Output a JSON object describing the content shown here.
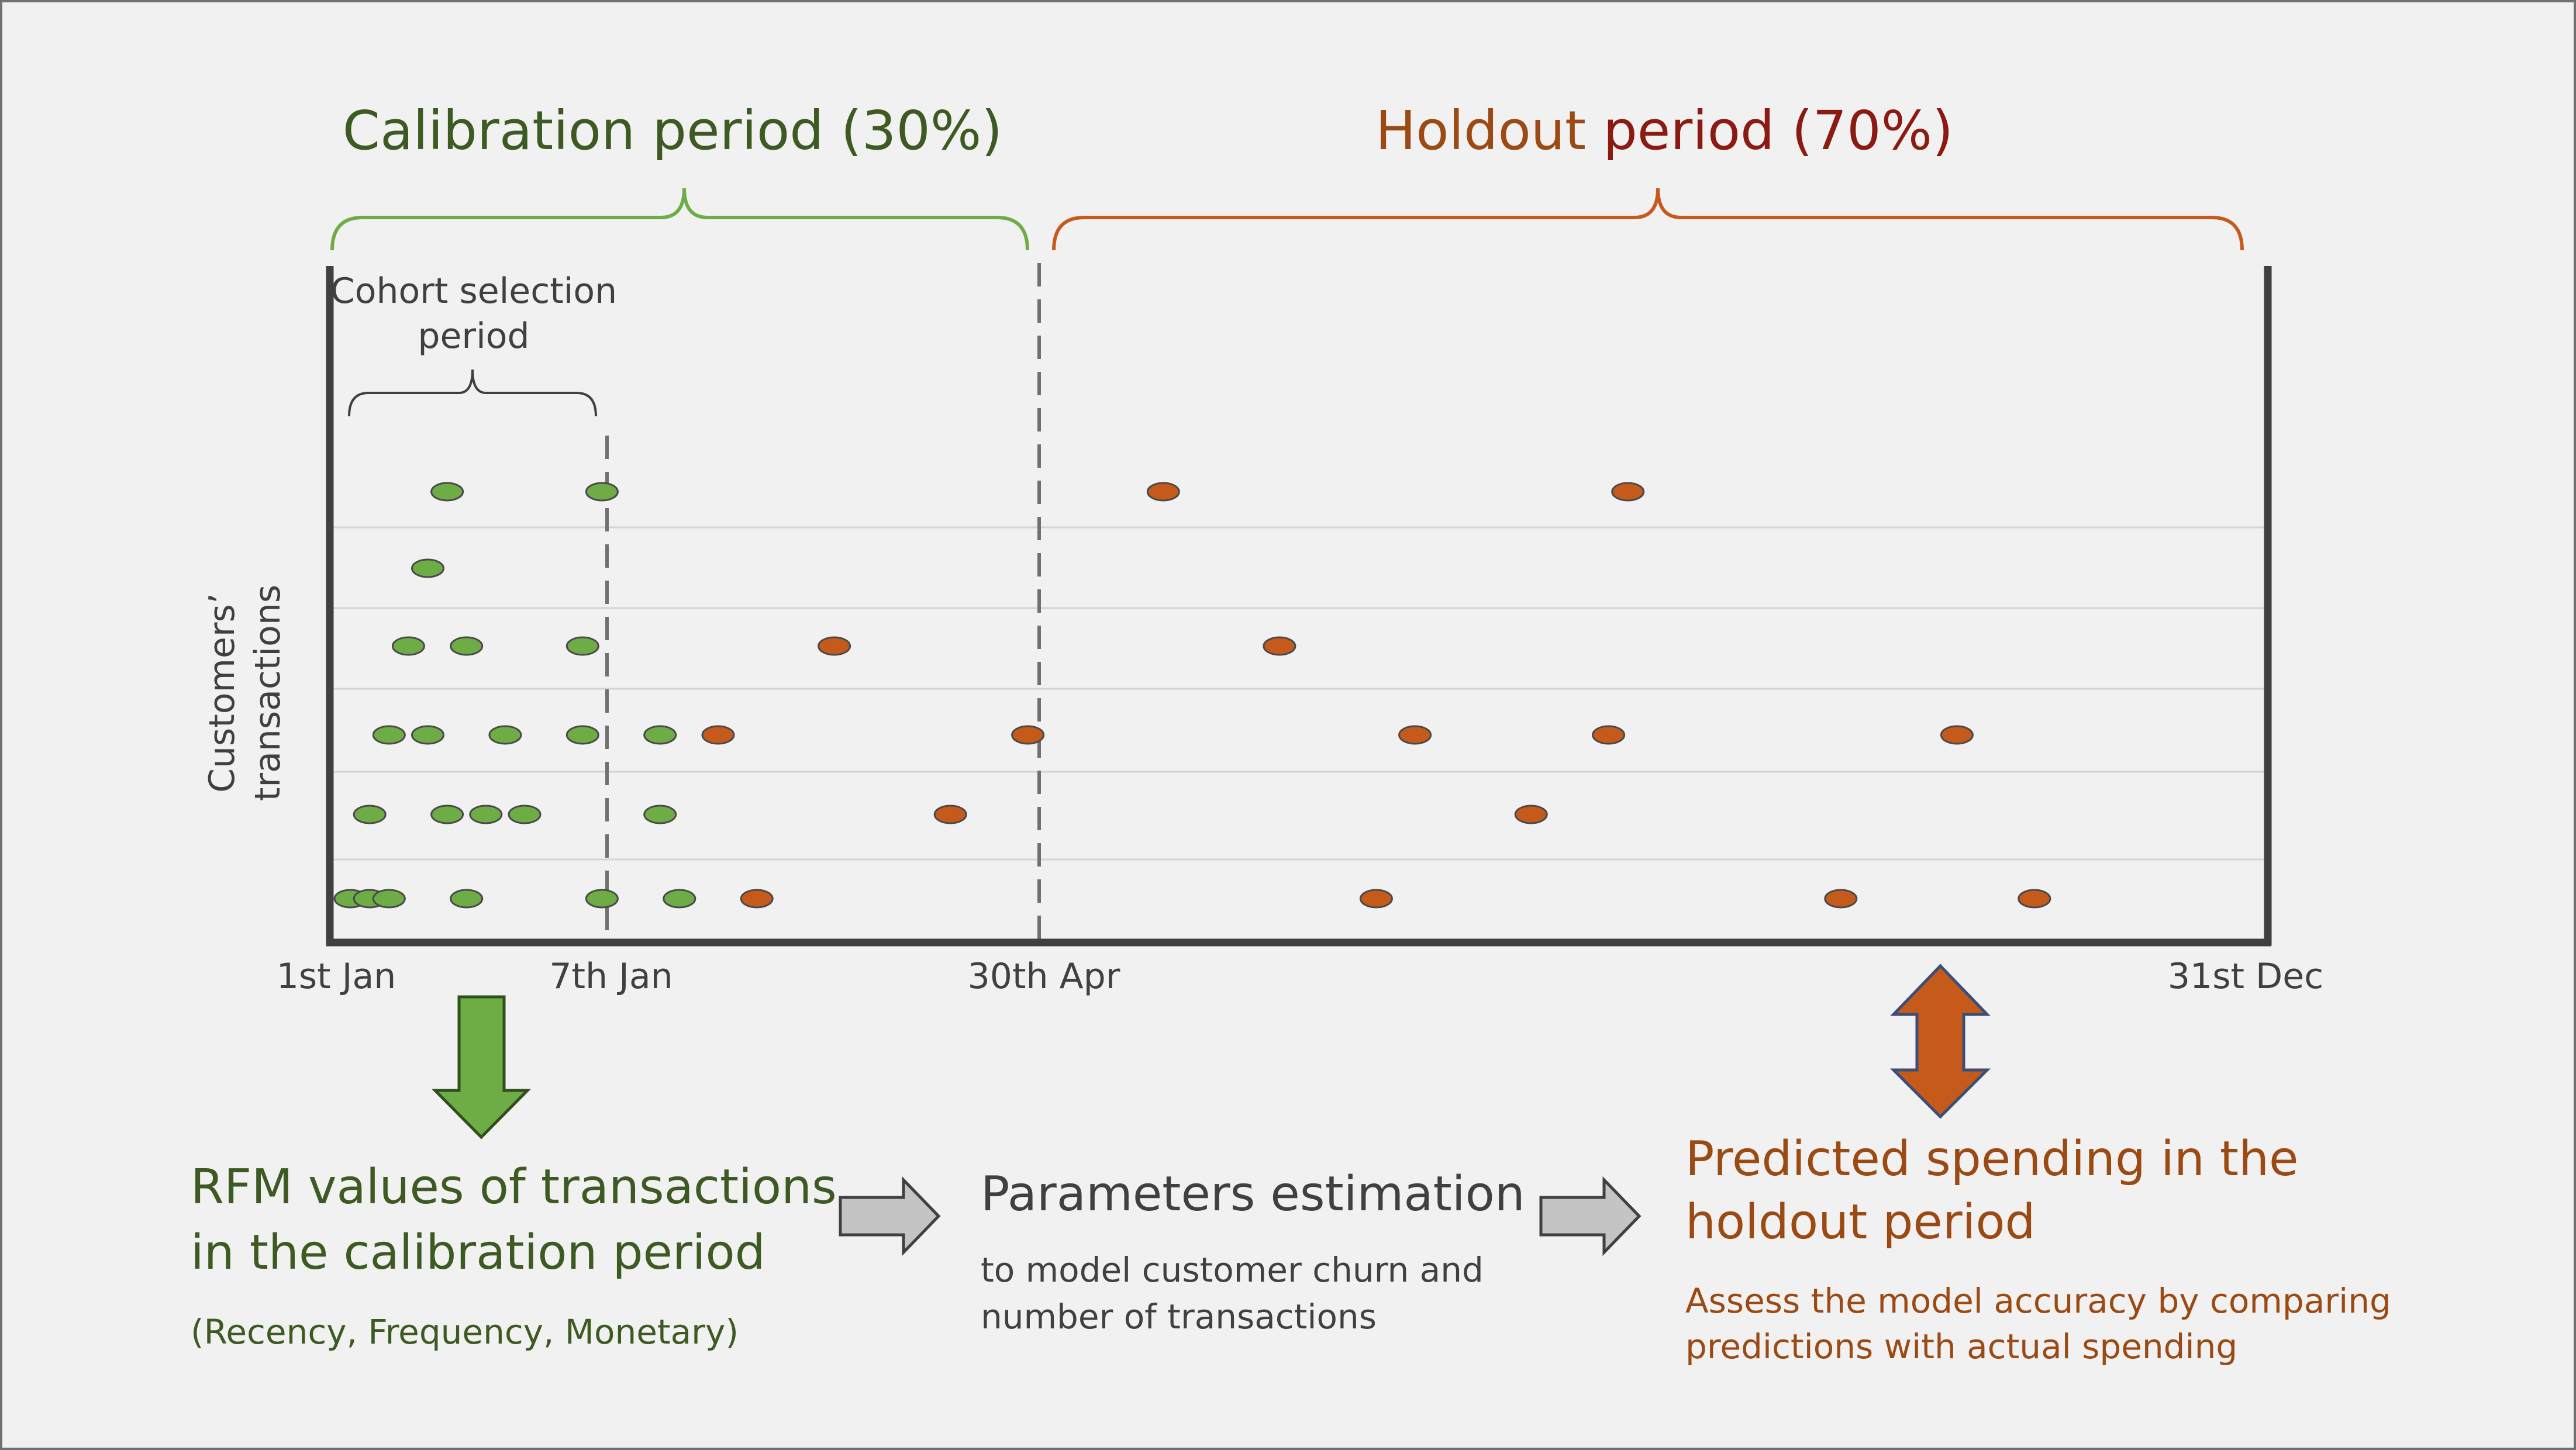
{
  "title_calibration": "Calibration period (30%)",
  "title_holdout_prefix": "Holdout ",
  "title_holdout_suffix": "period (70%)",
  "cohort_label_line1": "Cohort selection",
  "cohort_label_line2": "period",
  "y_axis_line1": "Customers’",
  "y_axis_line2": "transactions",
  "x_ticks": [
    "1st Jan",
    "7th Jan",
    "30th Apr",
    "31st Dec"
  ],
  "rfm_title_line1": "RFM values of transactions",
  "rfm_title_line2": "in the calibration period",
  "rfm_subtitle": "(Recency, Frequency, Monetary)",
  "param_title": "Parameters estimation",
  "param_sub_line1": "to model customer churn and",
  "param_sub_line2": "number of transactions",
  "pred_title_line1": "Predicted spending in the",
  "pred_title_line2": "holdout period",
  "pred_sub_line1": "Assess the model accuracy by comparing",
  "pred_sub_line2": "predictions with actual spending",
  "colors": {
    "calibration_text": "#3d5a22",
    "calibration_brace": "#6ead45",
    "holdout_text_dark": "#8a1a12",
    "holdout_text_brown": "#9b4a14",
    "holdout_brace": "#c65a1e",
    "green_dot": "#6ead45",
    "orange_dot": "#c55a1a",
    "axis": "#404040",
    "dark_text": "#404040"
  },
  "chart_data": {
    "type": "scatter",
    "xlabel": "",
    "ylabel": "Customers’ transactions",
    "series": [
      {
        "period": "calibration",
        "rows": [
          [
            1,
            2,
            3,
            7,
            14,
            18
          ],
          [
            2,
            6,
            8,
            10,
            17
          ],
          [
            3,
            5,
            9,
            13,
            17
          ],
          [
            4,
            7,
            13
          ],
          [
            5
          ],
          [
            6,
            14
          ]
        ]
      },
      {
        "period": "holdout",
        "rows": [
          [
            22,
            54,
            78,
            88
          ],
          [
            32,
            62
          ],
          [
            20,
            36,
            56,
            66,
            84
          ],
          [
            26,
            49
          ],
          [],
          [
            43,
            67
          ]
        ]
      }
    ]
  }
}
